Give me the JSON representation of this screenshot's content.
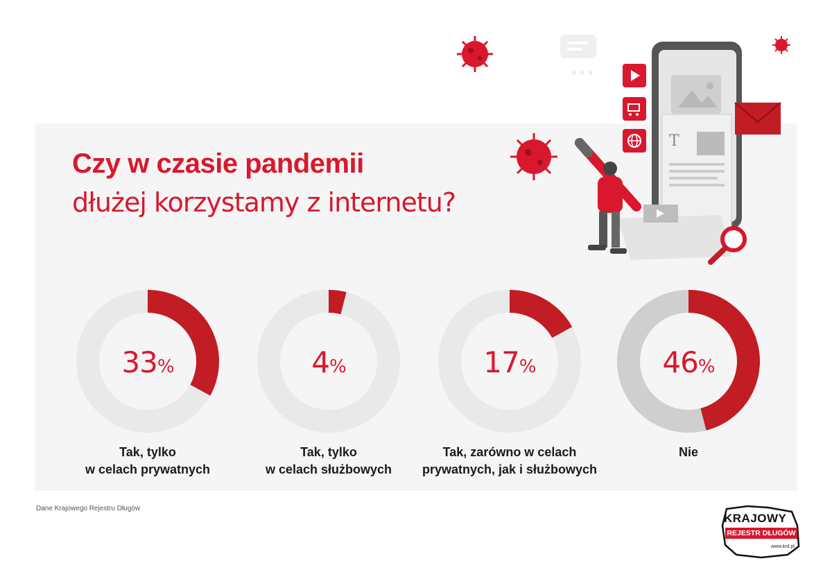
{
  "title": {
    "line1": "Czy w czasie pandemii",
    "line2": "dłużej korzystamy z internetu?"
  },
  "colors": {
    "accent": "#d9182d",
    "accent_dark": "#c21c24",
    "ring_track": "#e9e9e9",
    "ring_track_dark": "#cfcfcf",
    "panel": "#f5f5f5"
  },
  "chart_data": {
    "type": "pie",
    "title": "Czy w czasie pandemii dłużej korzystamy z internetu?",
    "categories": [
      "Tak, tylko w celach prywatnych",
      "Tak, tylko w celach służbowych",
      "Tak, zarówno w celach prywatnych, jak i służbowych",
      "Nie"
    ],
    "values": [
      33,
      4,
      17,
      46
    ],
    "unit": "%",
    "donuts": [
      {
        "value": 33,
        "value_label": "33",
        "unit": "%",
        "label_line1": "Tak, tylko",
        "label_line2": "w celach prywatnych"
      },
      {
        "value": 4,
        "value_label": "4",
        "unit": "%",
        "label_line1": "Tak, tylko",
        "label_line2": "w celach służbowych"
      },
      {
        "value": 17,
        "value_label": "17",
        "unit": "%",
        "label_line1": "Tak, zarówno w celach",
        "label_line2": "prywatnych, jak i służbowych"
      },
      {
        "value": 46,
        "value_label": "46",
        "unit": "%",
        "label_line1": "Nie",
        "label_line2": ""
      }
    ]
  },
  "footer": {
    "source": "Dane Krajowego Rejestru Długów"
  },
  "logo": {
    "line1": "KRAJOWY",
    "line2": "REJESTR DŁUGÓW",
    "url": "www.krd.pl"
  },
  "icons": [
    "virus-icon",
    "chat-bubble-icon",
    "play-icon",
    "cart-icon",
    "globe-icon",
    "envelope-icon",
    "magnifier-icon",
    "pencil-icon",
    "image-icon",
    "person-illustration"
  ]
}
